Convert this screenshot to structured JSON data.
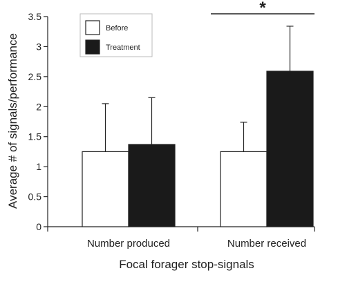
{
  "chart_data": {
    "type": "bar",
    "title": "",
    "xlabel": "Focal forager stop-signals",
    "ylabel": "Average # of signals/performance",
    "ylim": [
      0,
      3.5
    ],
    "yticks": [
      0,
      0.5,
      1,
      1.5,
      2,
      2.5,
      3,
      3.5
    ],
    "ytick_labels": [
      "0",
      "0.5",
      "1",
      "1.5",
      "2",
      "2.5",
      "3",
      "3.5"
    ],
    "categories": [
      "Number produced",
      "Number received"
    ],
    "series": [
      {
        "name": "Before",
        "color": "#ffffff",
        "values": [
          1.25,
          1.25
        ],
        "error": [
          0.8,
          0.49
        ]
      },
      {
        "name": "Treatment",
        "color": "#1a1a1a",
        "values": [
          1.37,
          2.59
        ],
        "error": [
          0.78,
          0.75
        ]
      }
    ],
    "legend_position": "top-left",
    "grid": false,
    "annotations": [
      {
        "text": "*",
        "category_index": 1,
        "type": "significance-bracket",
        "y": 3.5
      }
    ]
  }
}
